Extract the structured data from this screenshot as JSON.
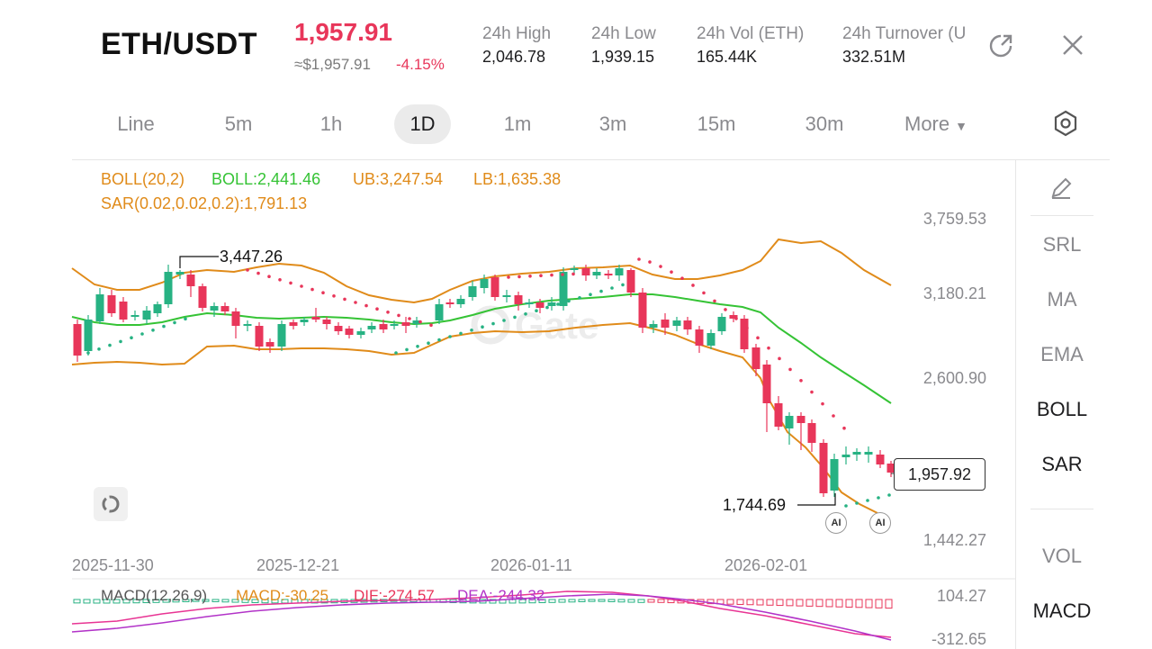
{
  "header": {
    "pair": "ETH/USDT",
    "price": "1,957.91",
    "usd_price": "≈$1,957.91",
    "change": "-4.15%",
    "stats": [
      {
        "label": "24h  High",
        "value": "2,046.78"
      },
      {
        "label": "24h  Low",
        "value": "1,939.15"
      },
      {
        "label": "24h  Vol (ETH)",
        "value": "165.44K"
      },
      {
        "label": "24h  Turnover (U",
        "value": "332.51M"
      }
    ]
  },
  "tabs": [
    "Line",
    "5m",
    "1h",
    "1D",
    "1m",
    "3m",
    "15m",
    "30m",
    "More"
  ],
  "active_tab": "1D",
  "legend": {
    "boll_params": "BOLL(20,2)",
    "boll_value": "BOLL:2,441.46",
    "ub": "UB:3,247.54",
    "lb": "LB:1,635.38",
    "sar": "SAR(0.02,0.02,0.2):1,791.13"
  },
  "y_axis": [
    "3,759.53",
    "3,180.21",
    "2,600.90",
    "1,442.27"
  ],
  "x_axis": [
    "2025-11-30",
    "2025-12-21",
    "2026-01-11",
    "2026-02-01"
  ],
  "annotations": {
    "high": "3,447.26",
    "low": "1,744.69",
    "last_price": "1,957.92",
    "ai": "AI"
  },
  "watermark": "Gate",
  "macd": {
    "params": "MACD(12,26,9)",
    "macd": "MACD:-30.25",
    "dif": "DIF:-274.57",
    "dea": "DEA:-244.32",
    "y_top": "104.27",
    "y_bottom": "-312.65"
  },
  "side_panel": {
    "items_top": [
      "SRL",
      "MA",
      "EMA",
      "BOLL",
      "SAR"
    ],
    "items_bottom": [
      "VOL",
      "MACD"
    ]
  },
  "colors": {
    "up": "#27b283",
    "down": "#e8365a",
    "boll_mid": "#35c335",
    "boll_band": "#e08b1a",
    "sar": "#e8365a"
  }
}
